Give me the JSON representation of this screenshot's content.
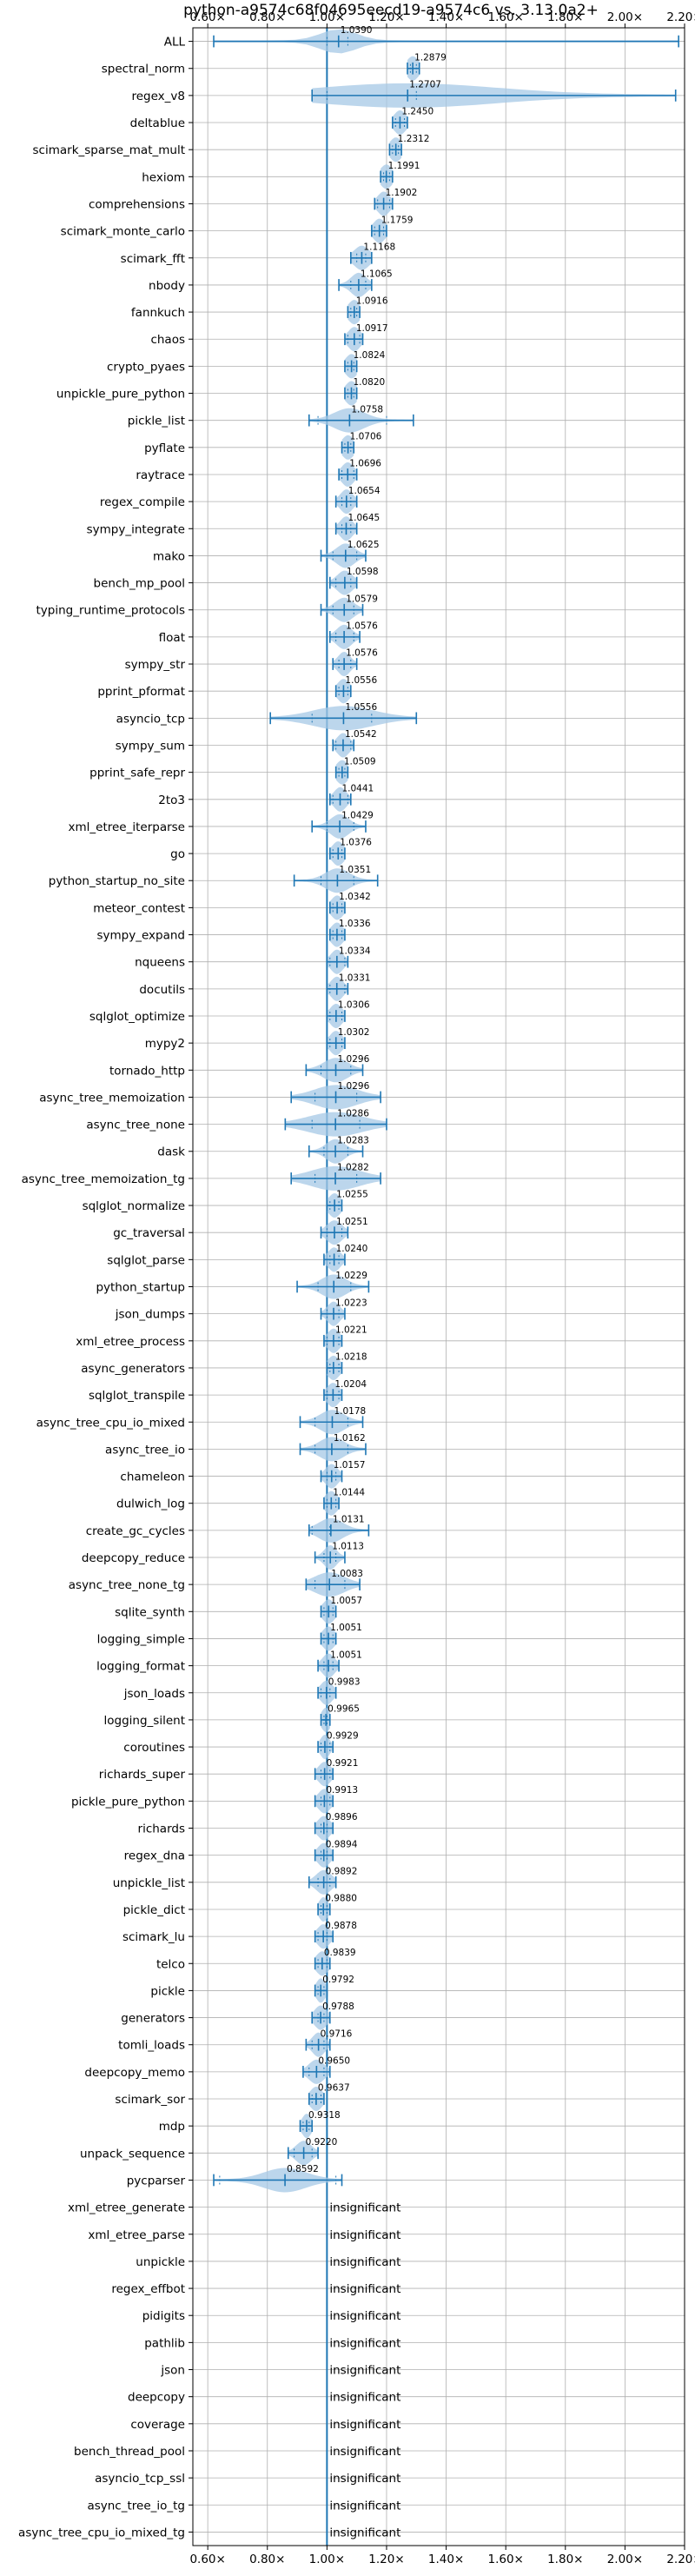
{
  "chart_data": {
    "type": "violin",
    "title": "python-a9574c68f04695eecd19-a9574c6 vs. 3.13.0a2+",
    "xlim": [
      0.55,
      2.2
    ],
    "x_ticks": [
      {
        "value": 0.6,
        "label": "0.60×"
      },
      {
        "value": 0.8,
        "label": "0.80×"
      },
      {
        "value": 1.0,
        "label": "1.00×"
      },
      {
        "value": 1.2,
        "label": "1.20×"
      },
      {
        "value": 1.4,
        "label": "1.40×"
      },
      {
        "value": 1.6,
        "label": "1.60×"
      },
      {
        "value": 1.8,
        "label": "1.80×"
      },
      {
        "value": 2.0,
        "label": "2.00×"
      },
      {
        "value": 2.2,
        "label": "2.20×"
      }
    ],
    "reference_line": 1.0,
    "grid": true,
    "colors": {
      "violin": "#a6c8e6",
      "line": "#1f77b4",
      "reference": "#1f77b4",
      "grid": "#b0b0b0"
    },
    "insignificant_label": "insignificant",
    "benchmarks": [
      {
        "name": "ALL",
        "value": 1.039,
        "label": "1.0390",
        "min": 0.62,
        "max": 2.18,
        "q1": 1.0,
        "q3": 1.07,
        "spread": 0.06
      },
      {
        "name": "spectral_norm",
        "value": 1.2879,
        "label": "1.2879",
        "min": 1.27,
        "max": 1.31,
        "q1": 1.28,
        "q3": 1.3,
        "spread": 0.02
      },
      {
        "name": "regex_v8",
        "value": 1.2707,
        "label": "1.2707",
        "min": 0.95,
        "max": 2.17,
        "q1": 1.0,
        "q3": 1.3,
        "spread": 0.3
      },
      {
        "name": "deltablue",
        "value": 1.245,
        "label": "1.2450",
        "min": 1.22,
        "max": 1.27,
        "q1": 1.23,
        "q3": 1.26,
        "spread": 0.02
      },
      {
        "name": "scimark_sparse_mat_mult",
        "value": 1.2312,
        "label": "1.2312",
        "min": 1.21,
        "max": 1.25,
        "q1": 1.22,
        "q3": 1.24,
        "spread": 0.02
      },
      {
        "name": "hexiom",
        "value": 1.1991,
        "label": "1.1991",
        "min": 1.18,
        "max": 1.22,
        "q1": 1.19,
        "q3": 1.21,
        "spread": 0.02
      },
      {
        "name": "comprehensions",
        "value": 1.1902,
        "label": "1.1902",
        "min": 1.16,
        "max": 1.22,
        "q1": 1.17,
        "q3": 1.21,
        "spread": 0.02
      },
      {
        "name": "scimark_monte_carlo",
        "value": 1.1759,
        "label": "1.1759",
        "min": 1.15,
        "max": 1.2,
        "q1": 1.16,
        "q3": 1.19,
        "spread": 0.02
      },
      {
        "name": "scimark_fft",
        "value": 1.1168,
        "label": "1.1168",
        "min": 1.08,
        "max": 1.15,
        "q1": 1.1,
        "q3": 1.13,
        "spread": 0.025
      },
      {
        "name": "nbody",
        "value": 1.1065,
        "label": "1.1065",
        "min": 1.04,
        "max": 1.15,
        "q1": 1.08,
        "q3": 1.13,
        "spread": 0.025
      },
      {
        "name": "fannkuch",
        "value": 1.0916,
        "label": "1.0916",
        "min": 1.07,
        "max": 1.11,
        "q1": 1.08,
        "q3": 1.1,
        "spread": 0.02
      },
      {
        "name": "chaos",
        "value": 1.0917,
        "label": "1.0917",
        "min": 1.06,
        "max": 1.12,
        "q1": 1.07,
        "q3": 1.11,
        "spread": 0.02
      },
      {
        "name": "crypto_pyaes",
        "value": 1.0824,
        "label": "1.0824",
        "min": 1.06,
        "max": 1.1,
        "q1": 1.07,
        "q3": 1.09,
        "spread": 0.02
      },
      {
        "name": "unpickle_pure_python",
        "value": 1.082,
        "label": "1.0820",
        "min": 1.06,
        "max": 1.1,
        "q1": 1.07,
        "q3": 1.09,
        "spread": 0.02
      },
      {
        "name": "pickle_list",
        "value": 1.0758,
        "label": "1.0758",
        "min": 0.94,
        "max": 1.29,
        "q1": 0.97,
        "q3": 1.2,
        "spread": 0.05
      },
      {
        "name": "pyflate",
        "value": 1.0706,
        "label": "1.0706",
        "min": 1.05,
        "max": 1.09,
        "q1": 1.06,
        "q3": 1.08,
        "spread": 0.02
      },
      {
        "name": "raytrace",
        "value": 1.0696,
        "label": "1.0696",
        "min": 1.04,
        "max": 1.1,
        "q1": 1.05,
        "q3": 1.09,
        "spread": 0.02
      },
      {
        "name": "regex_compile",
        "value": 1.0654,
        "label": "1.0654",
        "min": 1.03,
        "max": 1.1,
        "q1": 1.05,
        "q3": 1.08,
        "spread": 0.02
      },
      {
        "name": "sympy_integrate",
        "value": 1.0645,
        "label": "1.0645",
        "min": 1.03,
        "max": 1.1,
        "q1": 1.05,
        "q3": 1.08,
        "spread": 0.02
      },
      {
        "name": "mako",
        "value": 1.0625,
        "label": "1.0625",
        "min": 0.98,
        "max": 1.13,
        "q1": 1.02,
        "q3": 1.1,
        "spread": 0.03
      },
      {
        "name": "bench_mp_pool",
        "value": 1.0598,
        "label": "1.0598",
        "min": 1.01,
        "max": 1.1,
        "q1": 1.03,
        "q3": 1.08,
        "spread": 0.025
      },
      {
        "name": "typing_runtime_protocols",
        "value": 1.0579,
        "label": "1.0579",
        "min": 0.98,
        "max": 1.12,
        "q1": 1.02,
        "q3": 1.09,
        "spread": 0.03
      },
      {
        "name": "float",
        "value": 1.0576,
        "label": "1.0576",
        "min": 1.01,
        "max": 1.11,
        "q1": 1.03,
        "q3": 1.09,
        "spread": 0.025
      },
      {
        "name": "sympy_str",
        "value": 1.0576,
        "label": "1.0576",
        "min": 1.02,
        "max": 1.1,
        "q1": 1.04,
        "q3": 1.08,
        "spread": 0.02
      },
      {
        "name": "pprint_pformat",
        "value": 1.0556,
        "label": "1.0556",
        "min": 1.03,
        "max": 1.08,
        "q1": 1.04,
        "q3": 1.07,
        "spread": 0.02
      },
      {
        "name": "asyncio_tcp",
        "value": 1.0556,
        "label": "1.0556",
        "min": 0.81,
        "max": 1.3,
        "q1": 0.95,
        "q3": 1.15,
        "spread": 0.1
      },
      {
        "name": "sympy_sum",
        "value": 1.0542,
        "label": "1.0542",
        "min": 1.02,
        "max": 1.09,
        "q1": 1.03,
        "q3": 1.08,
        "spread": 0.02
      },
      {
        "name": "pprint_safe_repr",
        "value": 1.0509,
        "label": "1.0509",
        "min": 1.03,
        "max": 1.07,
        "q1": 1.04,
        "q3": 1.06,
        "spread": 0.02
      },
      {
        "name": "2to3",
        "value": 1.0441,
        "label": "1.0441",
        "min": 1.01,
        "max": 1.08,
        "q1": 1.02,
        "q3": 1.07,
        "spread": 0.02
      },
      {
        "name": "xml_etree_iterparse",
        "value": 1.0429,
        "label": "1.0429",
        "min": 0.95,
        "max": 1.13,
        "q1": 1.0,
        "q3": 1.09,
        "spread": 0.03
      },
      {
        "name": "go",
        "value": 1.0376,
        "label": "1.0376",
        "min": 1.01,
        "max": 1.06,
        "q1": 1.02,
        "q3": 1.05,
        "spread": 0.02
      },
      {
        "name": "python_startup_no_site",
        "value": 1.0351,
        "label": "1.0351",
        "min": 0.89,
        "max": 1.17,
        "q1": 0.98,
        "q3": 1.09,
        "spread": 0.04
      },
      {
        "name": "meteor_contest",
        "value": 1.0342,
        "label": "1.0342",
        "min": 1.01,
        "max": 1.06,
        "q1": 1.02,
        "q3": 1.05,
        "spread": 0.02
      },
      {
        "name": "sympy_expand",
        "value": 1.0336,
        "label": "1.0336",
        "min": 1.01,
        "max": 1.06,
        "q1": 1.02,
        "q3": 1.05,
        "spread": 0.02
      },
      {
        "name": "nqueens",
        "value": 1.0334,
        "label": "1.0334",
        "min": 1.0,
        "max": 1.07,
        "q1": 1.01,
        "q3": 1.06,
        "spread": 0.02
      },
      {
        "name": "docutils",
        "value": 1.0331,
        "label": "1.0331",
        "min": 1.0,
        "max": 1.07,
        "q1": 1.01,
        "q3": 1.06,
        "spread": 0.02
      },
      {
        "name": "sqlglot_optimize",
        "value": 1.0306,
        "label": "1.0306",
        "min": 1.0,
        "max": 1.06,
        "q1": 1.01,
        "q3": 1.05,
        "spread": 0.02
      },
      {
        "name": "mypy2",
        "value": 1.0302,
        "label": "1.0302",
        "min": 1.0,
        "max": 1.06,
        "q1": 1.01,
        "q3": 1.05,
        "spread": 0.02
      },
      {
        "name": "tornado_http",
        "value": 1.0296,
        "label": "1.0296",
        "min": 0.93,
        "max": 1.12,
        "q1": 0.98,
        "q3": 1.08,
        "spread": 0.04
      },
      {
        "name": "async_tree_memoization",
        "value": 1.0296,
        "label": "1.0296",
        "min": 0.88,
        "max": 1.18,
        "q1": 0.96,
        "q3": 1.1,
        "spread": 0.07
      },
      {
        "name": "async_tree_none",
        "value": 1.0286,
        "label": "1.0286",
        "min": 0.86,
        "max": 1.2,
        "q1": 0.95,
        "q3": 1.11,
        "spread": 0.09
      },
      {
        "name": "dask",
        "value": 1.0283,
        "label": "1.0283",
        "min": 0.94,
        "max": 1.12,
        "q1": 0.99,
        "q3": 1.07,
        "spread": 0.03
      },
      {
        "name": "async_tree_memoization_tg",
        "value": 1.0282,
        "label": "1.0282",
        "min": 0.88,
        "max": 1.18,
        "q1": 0.96,
        "q3": 1.1,
        "spread": 0.08
      },
      {
        "name": "sqlglot_normalize",
        "value": 1.0255,
        "label": "1.0255",
        "min": 1.0,
        "max": 1.05,
        "q1": 1.01,
        "q3": 1.04,
        "spread": 0.02
      },
      {
        "name": "gc_traversal",
        "value": 1.0251,
        "label": "1.0251",
        "min": 0.98,
        "max": 1.07,
        "q1": 1.0,
        "q3": 1.05,
        "spread": 0.025
      },
      {
        "name": "sqlglot_parse",
        "value": 1.024,
        "label": "1.0240",
        "min": 0.99,
        "max": 1.06,
        "q1": 1.01,
        "q3": 1.04,
        "spread": 0.02
      },
      {
        "name": "python_startup",
        "value": 1.0229,
        "label": "1.0229",
        "min": 0.9,
        "max": 1.14,
        "q1": 0.97,
        "q3": 1.08,
        "spread": 0.04
      },
      {
        "name": "json_dumps",
        "value": 1.0223,
        "label": "1.0223",
        "min": 0.98,
        "max": 1.06,
        "q1": 1.0,
        "q3": 1.04,
        "spread": 0.02
      },
      {
        "name": "xml_etree_process",
        "value": 1.0221,
        "label": "1.0221",
        "min": 0.99,
        "max": 1.05,
        "q1": 1.0,
        "q3": 1.04,
        "spread": 0.02
      },
      {
        "name": "async_generators",
        "value": 1.0218,
        "label": "1.0218",
        "min": 1.0,
        "max": 1.05,
        "q1": 1.01,
        "q3": 1.04,
        "spread": 0.02
      },
      {
        "name": "sqlglot_transpile",
        "value": 1.0204,
        "label": "1.0204",
        "min": 0.99,
        "max": 1.05,
        "q1": 1.0,
        "q3": 1.04,
        "spread": 0.02
      },
      {
        "name": "async_tree_cpu_io_mixed",
        "value": 1.0178,
        "label": "1.0178",
        "min": 0.91,
        "max": 1.12,
        "q1": 0.96,
        "q3": 1.07,
        "spread": 0.04
      },
      {
        "name": "async_tree_io",
        "value": 1.0162,
        "label": "1.0162",
        "min": 0.91,
        "max": 1.13,
        "q1": 0.96,
        "q3": 1.07,
        "spread": 0.04
      },
      {
        "name": "chameleon",
        "value": 1.0157,
        "label": "1.0157",
        "min": 0.98,
        "max": 1.05,
        "q1": 1.0,
        "q3": 1.03,
        "spread": 0.02
      },
      {
        "name": "dulwich_log",
        "value": 1.0144,
        "label": "1.0144",
        "min": 0.99,
        "max": 1.04,
        "q1": 1.0,
        "q3": 1.03,
        "spread": 0.02
      },
      {
        "name": "create_gc_cycles",
        "value": 1.0131,
        "label": "1.0131",
        "min": 0.94,
        "max": 1.14,
        "q1": 0.95,
        "q3": 1.01,
        "spread": 0.04
      },
      {
        "name": "deepcopy_reduce",
        "value": 1.0113,
        "label": "1.0113",
        "min": 0.96,
        "max": 1.06,
        "q1": 0.99,
        "q3": 1.03,
        "spread": 0.02
      },
      {
        "name": "async_tree_none_tg",
        "value": 1.0083,
        "label": "1.0083",
        "min": 0.93,
        "max": 1.11,
        "q1": 0.96,
        "q3": 1.06,
        "spread": 0.05
      },
      {
        "name": "sqlite_synth",
        "value": 1.0057,
        "label": "1.0057",
        "min": 0.98,
        "max": 1.03,
        "q1": 0.99,
        "q3": 1.02,
        "spread": 0.02
      },
      {
        "name": "logging_simple",
        "value": 1.0051,
        "label": "1.0051",
        "min": 0.98,
        "max": 1.03,
        "q1": 0.99,
        "q3": 1.02,
        "spread": 0.02
      },
      {
        "name": "logging_format",
        "value": 1.0051,
        "label": "1.0051",
        "min": 0.97,
        "max": 1.04,
        "q1": 0.99,
        "q3": 1.02,
        "spread": 0.02
      },
      {
        "name": "json_loads",
        "value": 0.9983,
        "label": "0.9983",
        "min": 0.97,
        "max": 1.03,
        "q1": 0.98,
        "q3": 1.01,
        "spread": 0.02
      },
      {
        "name": "logging_silent",
        "value": 0.9965,
        "label": "0.9965",
        "min": 0.98,
        "max": 1.01,
        "q1": 0.99,
        "q3": 1.0,
        "spread": 0.015
      },
      {
        "name": "coroutines",
        "value": 0.9929,
        "label": "0.9929",
        "min": 0.97,
        "max": 1.02,
        "q1": 0.98,
        "q3": 1.01,
        "spread": 0.015
      },
      {
        "name": "richards_super",
        "value": 0.9921,
        "label": "0.9921",
        "min": 0.96,
        "max": 1.02,
        "q1": 0.98,
        "q3": 1.01,
        "spread": 0.02
      },
      {
        "name": "pickle_pure_python",
        "value": 0.9913,
        "label": "0.9913",
        "min": 0.96,
        "max": 1.02,
        "q1": 0.98,
        "q3": 1.01,
        "spread": 0.02
      },
      {
        "name": "richards",
        "value": 0.9896,
        "label": "0.9896",
        "min": 0.96,
        "max": 1.02,
        "q1": 0.98,
        "q3": 1.0,
        "spread": 0.02
      },
      {
        "name": "regex_dna",
        "value": 0.9894,
        "label": "0.9894",
        "min": 0.96,
        "max": 1.02,
        "q1": 0.98,
        "q3": 1.0,
        "spread": 0.02
      },
      {
        "name": "unpickle_list",
        "value": 0.9892,
        "label": "0.9892",
        "min": 0.94,
        "max": 1.03,
        "q1": 0.97,
        "q3": 1.01,
        "spread": 0.025
      },
      {
        "name": "pickle_dict",
        "value": 0.988,
        "label": "0.9880",
        "min": 0.97,
        "max": 1.01,
        "q1": 0.98,
        "q3": 1.0,
        "spread": 0.015
      },
      {
        "name": "scimark_lu",
        "value": 0.9878,
        "label": "0.9878",
        "min": 0.96,
        "max": 1.02,
        "q1": 0.97,
        "q3": 1.0,
        "spread": 0.02
      },
      {
        "name": "telco",
        "value": 0.9839,
        "label": "0.9839",
        "min": 0.96,
        "max": 1.01,
        "q1": 0.97,
        "q3": 1.0,
        "spread": 0.02
      },
      {
        "name": "pickle",
        "value": 0.9792,
        "label": "0.9792",
        "min": 0.96,
        "max": 1.0,
        "q1": 0.97,
        "q3": 0.99,
        "spread": 0.015
      },
      {
        "name": "generators",
        "value": 0.9788,
        "label": "0.9788",
        "min": 0.95,
        "max": 1.01,
        "q1": 0.97,
        "q3": 0.99,
        "spread": 0.02
      },
      {
        "name": "tomli_loads",
        "value": 0.9716,
        "label": "0.9716",
        "min": 0.93,
        "max": 1.01,
        "q1": 0.95,
        "q3": 0.99,
        "spread": 0.02
      },
      {
        "name": "deepcopy_memo",
        "value": 0.965,
        "label": "0.9650",
        "min": 0.92,
        "max": 1.01,
        "q1": 0.94,
        "q3": 0.99,
        "spread": 0.025
      },
      {
        "name": "scimark_sor",
        "value": 0.9637,
        "label": "0.9637",
        "min": 0.94,
        "max": 0.99,
        "q1": 0.95,
        "q3": 0.98,
        "spread": 0.02
      },
      {
        "name": "mdp",
        "value": 0.9318,
        "label": "0.9318",
        "min": 0.91,
        "max": 0.95,
        "q1": 0.92,
        "q3": 0.94,
        "spread": 0.015
      },
      {
        "name": "unpack_sequence",
        "value": 0.922,
        "label": "0.9220",
        "min": 0.87,
        "max": 0.97,
        "q1": 0.89,
        "q3": 0.95,
        "spread": 0.025
      },
      {
        "name": "pycparser",
        "value": 0.8592,
        "label": "0.8592",
        "min": 0.62,
        "max": 1.05,
        "q1": 0.64,
        "q3": 1.03,
        "spread": 0.07
      },
      {
        "name": "xml_etree_generate",
        "insignificant": true
      },
      {
        "name": "xml_etree_parse",
        "insignificant": true
      },
      {
        "name": "unpickle",
        "insignificant": true
      },
      {
        "name": "regex_effbot",
        "insignificant": true
      },
      {
        "name": "pidigits",
        "insignificant": true
      },
      {
        "name": "pathlib",
        "insignificant": true
      },
      {
        "name": "json",
        "insignificant": true
      },
      {
        "name": "deepcopy",
        "insignificant": true
      },
      {
        "name": "coverage",
        "insignificant": true
      },
      {
        "name": "bench_thread_pool",
        "insignificant": true
      },
      {
        "name": "asyncio_tcp_ssl",
        "insignificant": true
      },
      {
        "name": "async_tree_io_tg",
        "insignificant": true
      },
      {
        "name": "async_tree_cpu_io_mixed_tg",
        "insignificant": true
      }
    ]
  }
}
